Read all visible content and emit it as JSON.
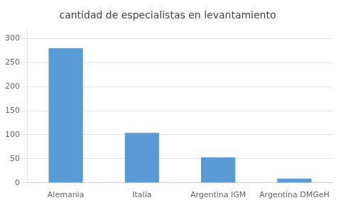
{
  "chart_data": {
    "type": "bar",
    "title": "cantidad de especialistas en levantamiento",
    "categories": [
      "Alemania",
      "Italia",
      "Argentina IGM",
      "Argentina DMGeH"
    ],
    "values": [
      280,
      104,
      53,
      9
    ],
    "color": "#5b9bd5",
    "ylim": [
      0,
      320
    ],
    "yticks": [
      0,
      50,
      100,
      150,
      200,
      250,
      300
    ],
    "grid": true
  }
}
